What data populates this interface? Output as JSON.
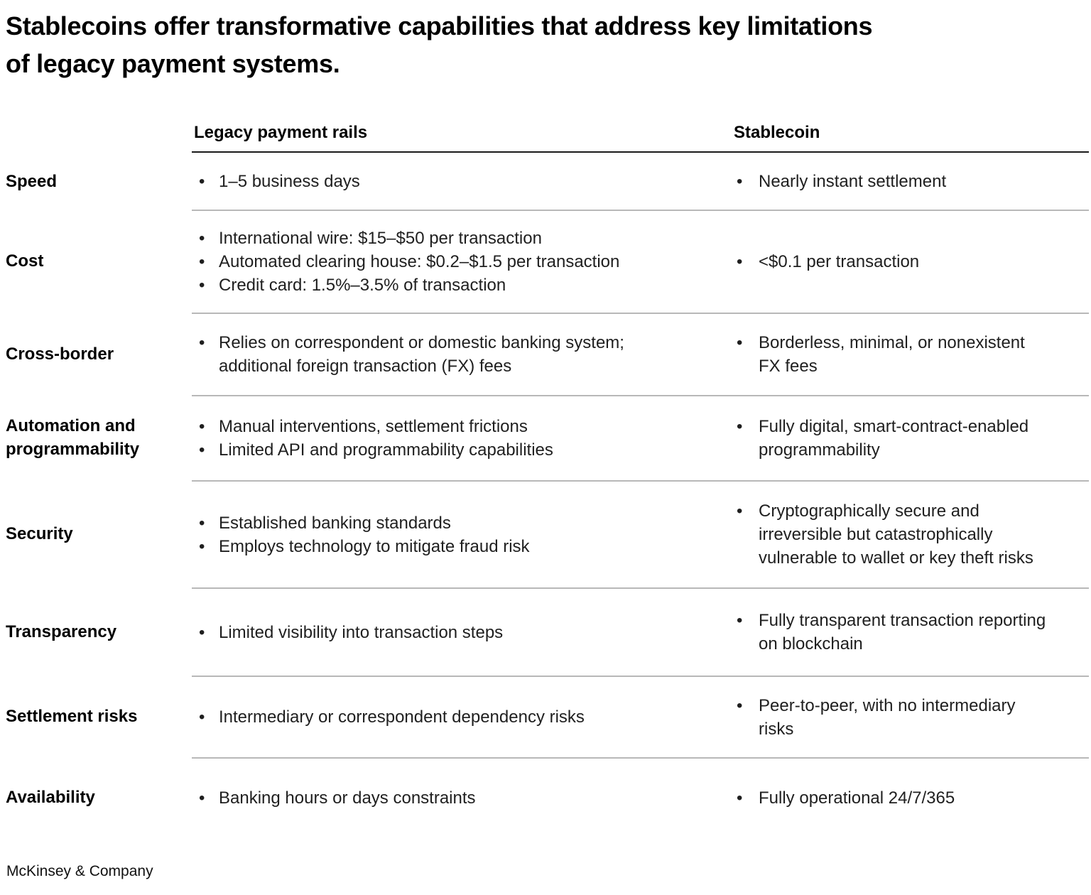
{
  "title": "Stablecoins offer transformative capabilities that address key limitations\nof legacy payment systems.",
  "bullet_char": "•",
  "footer": {
    "brand": "McKinsey & Company"
  },
  "table": {
    "columns": {
      "legacy": "Legacy payment rails",
      "stablecoin": "Stablecoin"
    },
    "rows": [
      {
        "label": "Speed",
        "legacy": [
          "1–5 business days"
        ],
        "stablecoin": [
          "Nearly instant settlement"
        ]
      },
      {
        "label": "Cost",
        "legacy": [
          "International wire: $15–$50 per transaction",
          "Automated clearing house: $0.2–$1.5 per transaction",
          "Credit card: 1.5%–3.5% of transaction"
        ],
        "stablecoin": [
          "<$0.1 per transaction"
        ]
      },
      {
        "label": "Cross-border",
        "legacy": [
          "Relies on correspondent or domestic banking system;\nadditional foreign transaction (FX) fees"
        ],
        "stablecoin": [
          "Borderless, minimal, or nonexistent\nFX fees"
        ]
      },
      {
        "label": "Automation and\nprogrammability",
        "legacy": [
          "Manual interventions, settlement frictions",
          "Limited API and programmability capabilities"
        ],
        "stablecoin": [
          "Fully digital, smart-contract-enabled\nprogrammability"
        ]
      },
      {
        "label": "Security",
        "legacy": [
          "Established banking standards",
          "Employs technology to mitigate fraud risk"
        ],
        "stablecoin": [
          "Cryptographically secure and\nirreversible but catastrophically\nvulnerable to wallet or key theft risks"
        ]
      },
      {
        "label": "Transparency",
        "legacy": [
          "Limited visibility into transaction steps"
        ],
        "stablecoin": [
          "Fully transparent transaction reporting\non blockchain"
        ]
      },
      {
        "label": "Settlement risks",
        "legacy": [
          "Intermediary or correspondent dependency risks"
        ],
        "stablecoin": [
          "Peer-to-peer, with no intermediary\nrisks"
        ]
      },
      {
        "label": "Availability",
        "legacy": [
          "Banking hours or days constraints"
        ],
        "stablecoin": [
          "Fully operational 24/7/365"
        ]
      }
    ]
  },
  "colors": {
    "header_rule": "#1a1a1a",
    "row_rule": "#b8b8b8",
    "text": "#1f1f1f"
  }
}
